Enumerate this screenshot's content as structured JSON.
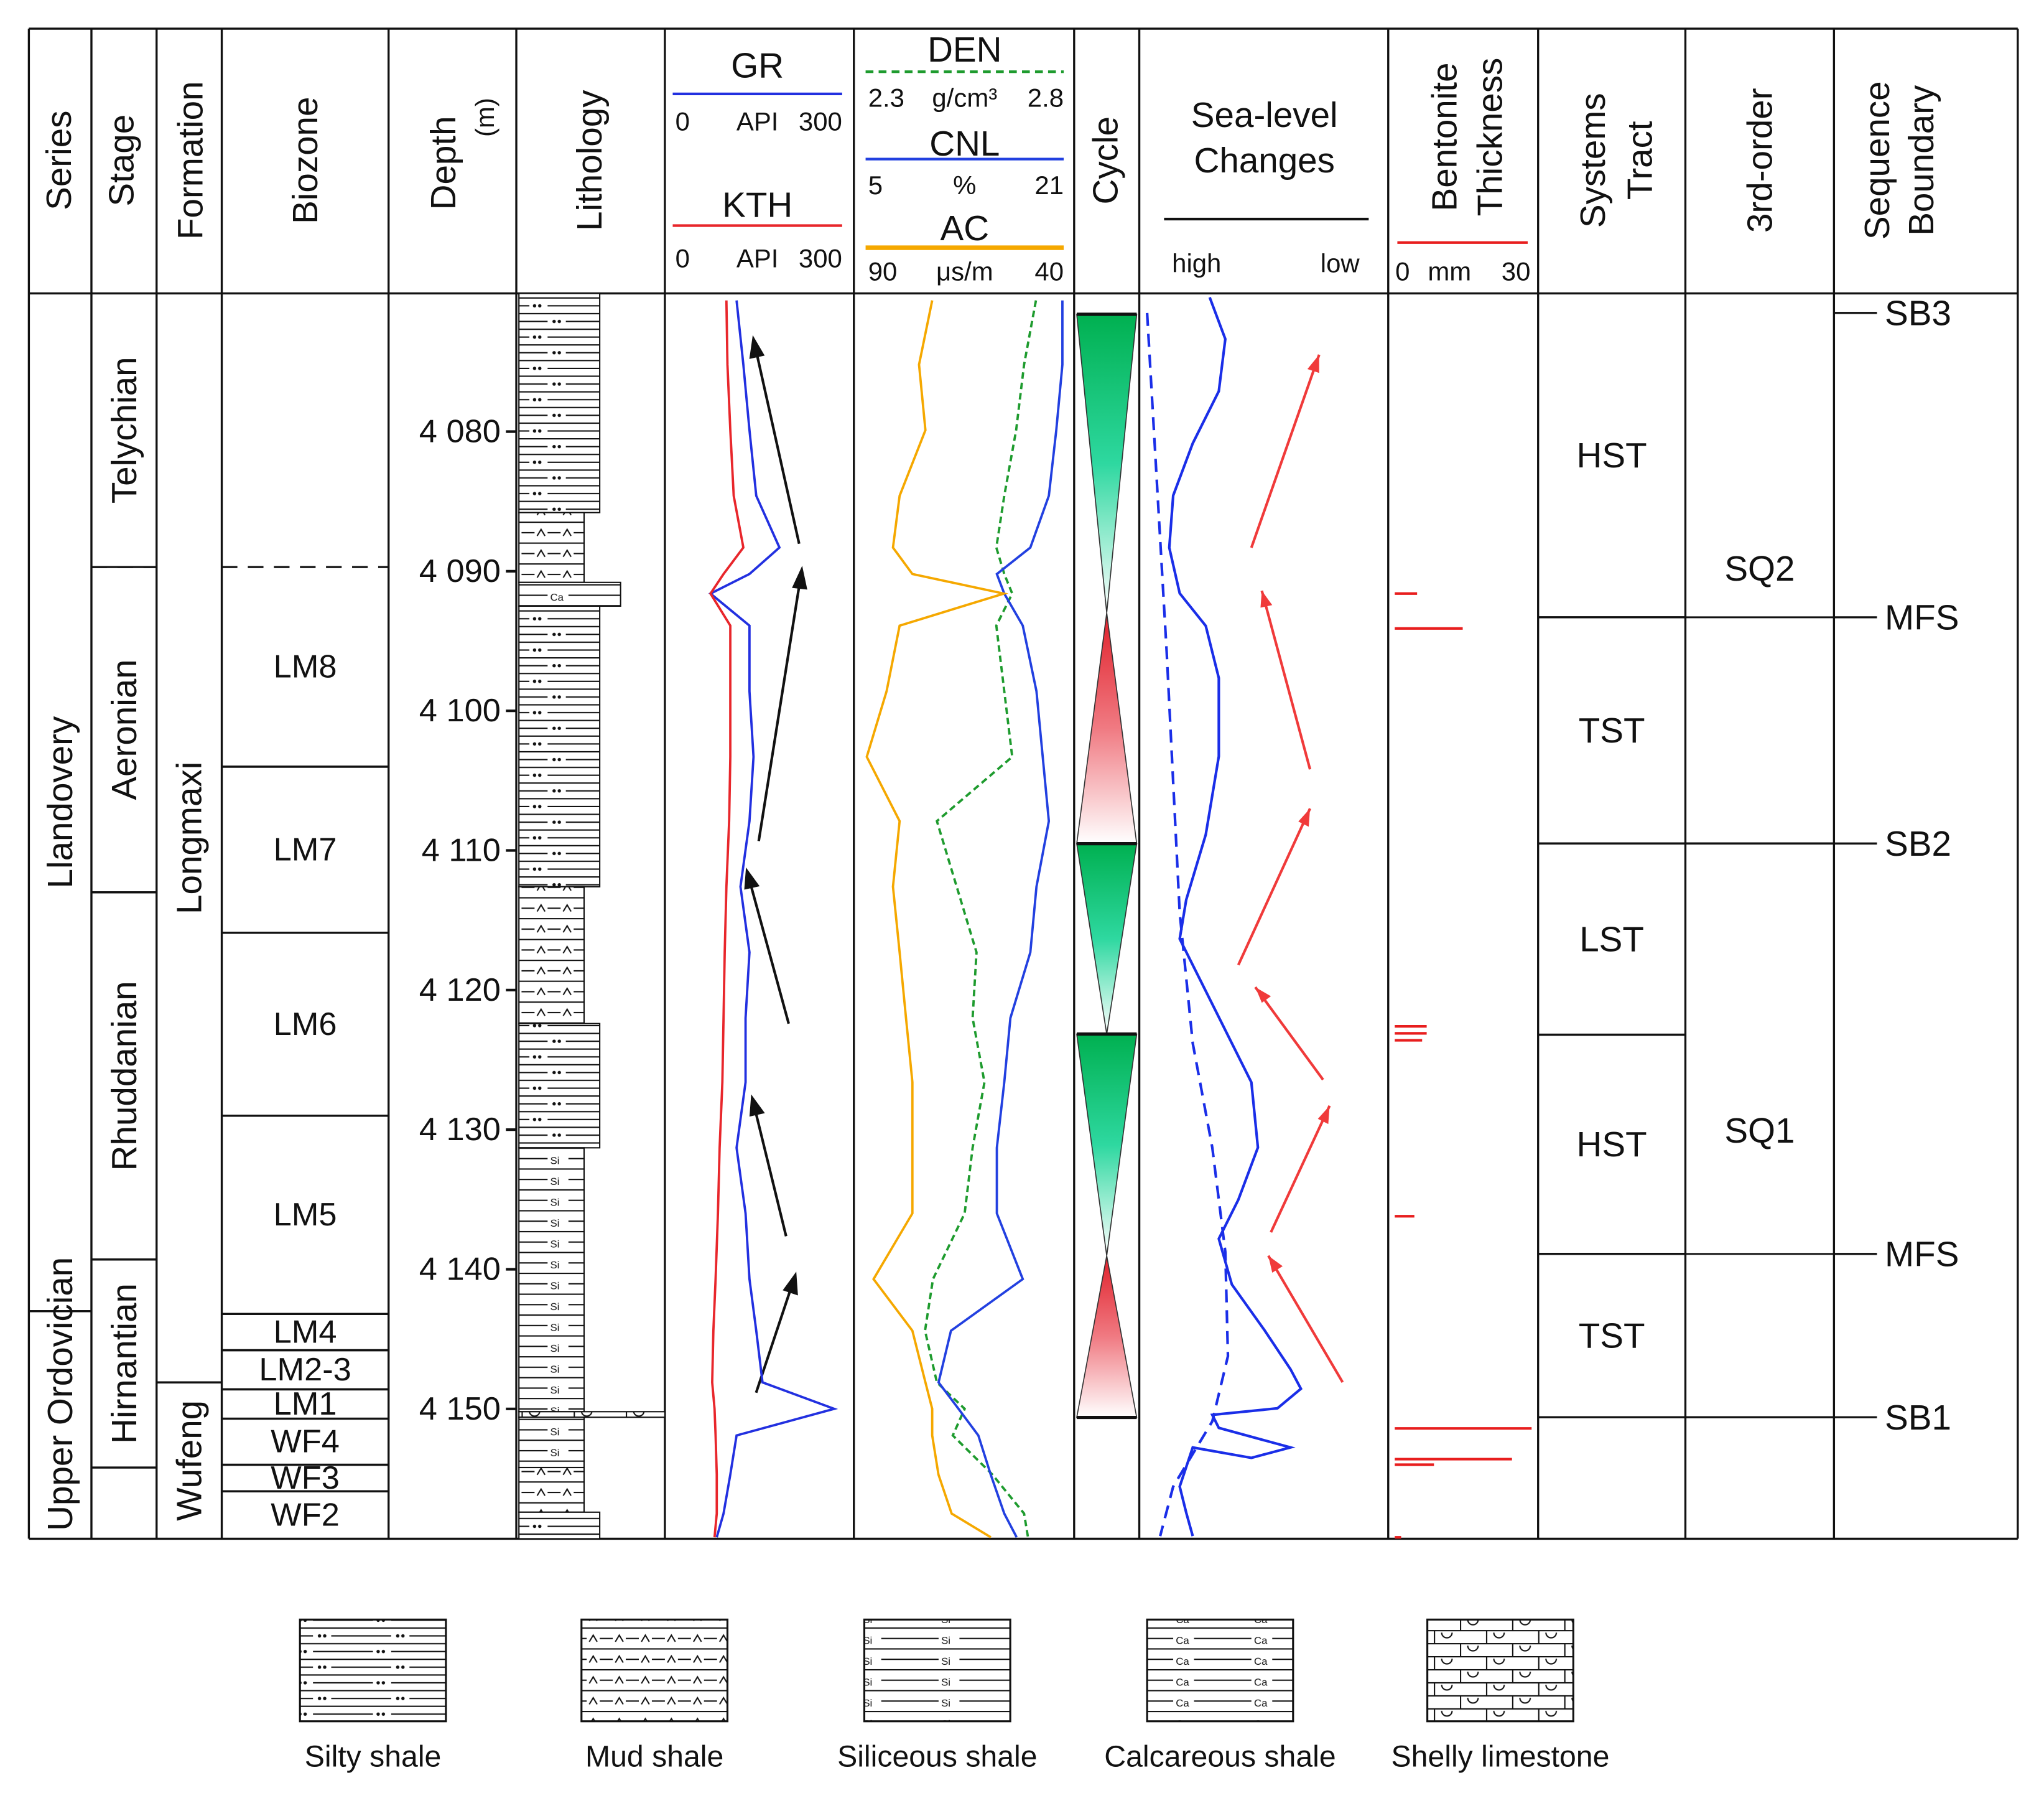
{
  "headers": {
    "series": "Series",
    "stage": "Stage",
    "formation": "Formation",
    "biozone": "Biozone",
    "depth": "Depth",
    "depth_unit": "(m)",
    "lithology": "Lithology",
    "cycle": "Cycle",
    "sea_level": [
      "Sea-level",
      "Changes"
    ],
    "sea_level_high": "high",
    "sea_level_low": "low",
    "bentonite": [
      "Bentonite",
      "Thickness"
    ],
    "systems_tract": [
      "Systems",
      "Tract"
    ],
    "sequence": "3rd-order",
    "sequence_boundary": [
      "Sequence",
      "Boundary"
    ]
  },
  "depth": {
    "lim": [
      4070.1,
      4159.3
    ],
    "ticks": [
      {
        "value": 4080,
        "label": "4 080"
      },
      {
        "value": 4090,
        "label": "4 090"
      },
      {
        "value": 4100,
        "label": "4 100"
      },
      {
        "value": 4110,
        "label": "4 110"
      },
      {
        "value": 4120,
        "label": "4 120"
      },
      {
        "value": 4130,
        "label": "4 130"
      },
      {
        "value": 4140,
        "label": "4 140"
      },
      {
        "value": 4150,
        "label": "4 150"
      }
    ]
  },
  "series": [
    {
      "name": "Llandovery",
      "top": 4070.1,
      "base": 4143
    },
    {
      "name": "Upper Ordovician",
      "top": 4143,
      "base": 4159.3
    }
  ],
  "stages": [
    {
      "name": "Telychian",
      "top": 4070.1,
      "base": 4089.7
    },
    {
      "name": "Aeronian",
      "top": 4089.7,
      "base": 4113,
      "top_line": "dashed"
    },
    {
      "name": "Rhuddanian",
      "top": 4113,
      "base": 4139.3
    },
    {
      "name": "Hirnantian",
      "top": 4139.3,
      "base": 4154.2
    }
  ],
  "formations": [
    {
      "name": "Longmaxi",
      "top": 4070.1,
      "base": 4148.1
    },
    {
      "name": "Wufeng",
      "top": 4148.1,
      "base": 4159.3
    }
  ],
  "biozones": [
    {
      "name": "LM8",
      "top": 4089.7,
      "base": 4104.0,
      "top_line": "dashed"
    },
    {
      "name": "LM7",
      "top": 4104.0,
      "base": 4115.9
    },
    {
      "name": "LM6",
      "top": 4115.9,
      "base": 4129.0
    },
    {
      "name": "LM5",
      "top": 4129.0,
      "base": 4143.2
    },
    {
      "name": "LM4",
      "top": 4143.2,
      "base": 4145.8
    },
    {
      "name": "LM2-3",
      "top": 4145.8,
      "base": 4148.6
    },
    {
      "name": "LM1",
      "top": 4148.6,
      "base": 4150.7
    },
    {
      "name": "WF4",
      "top": 4150.7,
      "base": 4154.0
    },
    {
      "name": "WF3",
      "top": 4154.0,
      "base": 4155.9
    },
    {
      "name": "WF2",
      "top": 4155.9,
      "base": 4159.3
    }
  ],
  "lithology_legend": [
    "Silty shale",
    "Mud shale",
    "Siliceous shale",
    "Calcareous shale",
    "Shelly limestone"
  ],
  "lithology_marks": {
    "siliceous": "Si",
    "calcareous": "Ca"
  },
  "lithology": [
    {
      "lithology": "Silty shale",
      "top": 4070.1,
      "base": 4085.8
    },
    {
      "lithology": "Mud shale",
      "top": 4085.8,
      "base": 4090.8
    },
    {
      "lithology": "Calcareous shale",
      "top": 4090.8,
      "base": 4092.5
    },
    {
      "lithology": "Silty shale",
      "top": 4092.5,
      "base": 4112.6
    },
    {
      "lithology": "Mud shale",
      "top": 4112.6,
      "base": 4122.4
    },
    {
      "lithology": "Silty shale",
      "top": 4122.4,
      "base": 4131.3
    },
    {
      "lithology": "Siliceous shale",
      "top": 4131.3,
      "base": 4150.2
    },
    {
      "lithology": "Shelly limestone",
      "top": 4150.2,
      "base": 4150.6
    },
    {
      "lithology": "Siliceous shale",
      "top": 4150.6,
      "base": 4154.2
    },
    {
      "lithology": "Mud shale",
      "top": 4154.2,
      "base": 4157.4
    },
    {
      "lithology": "Silty shale",
      "top": 4157.4,
      "base": 4159.3
    }
  ],
  "logs": {
    "depth": [
      4070.6,
      4075.2,
      4079.9,
      4084.6,
      4088.3,
      4090.2,
      4091.6,
      4093.9,
      4098.6,
      4103.3,
      4107.9,
      4112.6,
      4117.3,
      4122.0,
      4126.6,
      4131.3,
      4136.0,
      4140.7,
      4144.4,
      4148.1,
      4150.0,
      4151.9,
      4154.7,
      4157.5,
      4159.2
    ],
    "curves": [
      {
        "name": "GR",
        "unit": "API",
        "color": "#2230e0",
        "lim": [
          0,
          300
        ],
        "values": [
          113,
          125,
          136,
          148,
          189,
          136,
          67,
          136,
          136,
          143,
          136,
          120,
          136,
          129,
          129,
          113,
          129,
          136,
          148,
          159,
          286,
          113,
          102,
          90,
          78
        ]
      },
      {
        "name": "KTH",
        "unit": "API",
        "color": "#e8262b",
        "lim": [
          0,
          300
        ],
        "values": [
          95,
          97,
          102,
          108,
          125,
          90,
          67,
          102,
          102,
          102,
          100,
          95,
          92,
          90,
          88,
          83,
          80,
          76,
          72,
          70,
          74,
          76,
          78,
          78,
          74
        ]
      },
      {
        "name": "DEN",
        "unit": "g/cm³",
        "color": "#1e9b2e",
        "dashed": true,
        "lim": [
          2.3,
          2.8
        ],
        "values": [
          2.73,
          2.7,
          2.68,
          2.65,
          2.63,
          2.65,
          2.67,
          2.63,
          2.65,
          2.67,
          2.48,
          2.53,
          2.58,
          2.57,
          2.6,
          2.57,
          2.55,
          2.47,
          2.45,
          2.48,
          2.55,
          2.52,
          2.62,
          2.7,
          2.71
        ]
      },
      {
        "name": "CNL",
        "unit": "%",
        "color": "#2240e0",
        "lim": [
          5,
          21
        ],
        "values": [
          20.9,
          20.9,
          20.4,
          19.8,
          18.3,
          15.6,
          16.2,
          17.7,
          18.8,
          19.3,
          19.8,
          18.8,
          18.3,
          16.7,
          16.2,
          15.6,
          15.6,
          17.7,
          11.9,
          10.9,
          12.5,
          14.1,
          15.1,
          16.2,
          17.2
        ]
      },
      {
        "name": "AC",
        "unit": "μs/m",
        "color": "#f5a800",
        "lim": [
          90,
          40
        ],
        "values": [
          73.2,
          76.5,
          74.9,
          81.4,
          83.1,
          78.2,
          55.1,
          81.4,
          84.7,
          89.7,
          81.4,
          83.1,
          81.4,
          79.8,
          78.2,
          78.2,
          78.2,
          88.0,
          78.2,
          74.9,
          73.2,
          73.2,
          71.6,
          68.3,
          58.4
        ]
      }
    ]
  },
  "bentonite": {
    "unit": "mm",
    "lim": [
      0,
      30
    ],
    "color": "#e81e1e",
    "depth": [
      4091.6,
      4094.1,
      4122.6,
      4123.1,
      4123.6,
      4136.2,
      4151.4,
      4153.6,
      4154.0,
      4159.2
    ],
    "values": [
      4.9,
      14.9,
      7,
      7,
      6,
      4.3,
      30,
      25.7,
      8.6,
      1.4
    ]
  },
  "systems_tracts": [
    {
      "name": "HST",
      "top": 4070.1,
      "base": 4093.3
    },
    {
      "name": "TST",
      "top": 4093.3,
      "base": 4109.5
    },
    {
      "name": "LST",
      "top": 4109.5,
      "base": 4123.2
    },
    {
      "name": "HST",
      "top": 4123.2,
      "base": 4138.9
    },
    {
      "name": "TST",
      "top": 4138.9,
      "base": 4150.6
    }
  ],
  "sequences": [
    {
      "name": "SQ2",
      "top": 4070.1,
      "base": 4109.5
    },
    {
      "name": "SQ1",
      "top": 4109.5,
      "base": 4150.6
    }
  ],
  "sequence_boundaries": [
    {
      "name": "SB3",
      "depth": 4071.5
    },
    {
      "name": "MFS",
      "depth": 4093.3
    },
    {
      "name": "SB2",
      "depth": 4109.5
    },
    {
      "name": "MFS",
      "depth": 4138.9
    },
    {
      "name": "SB1",
      "depth": 4150.6
    }
  ]
}
